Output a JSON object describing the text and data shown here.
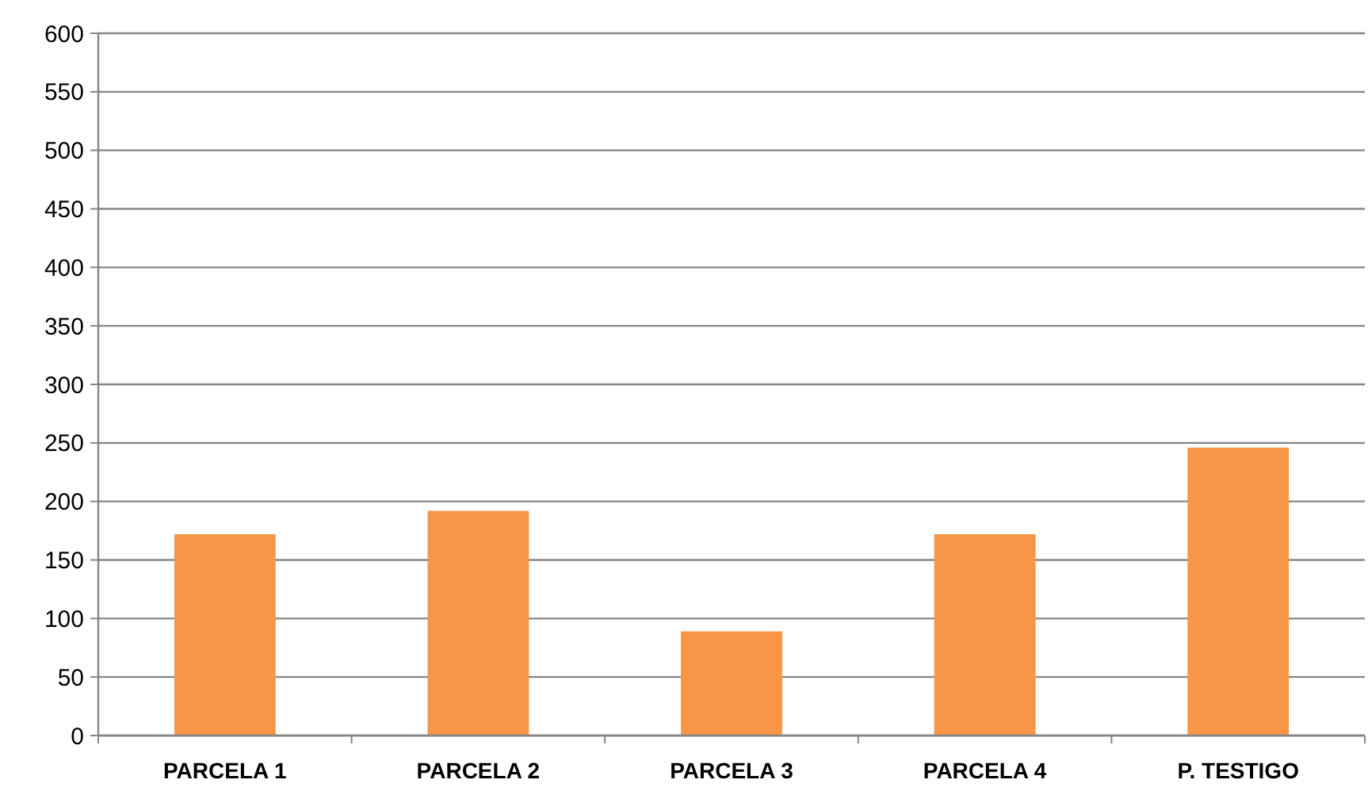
{
  "chart_data": {
    "type": "bar",
    "categories": [
      "PARCELA 1",
      "PARCELA 2",
      "PARCELA 3",
      "PARCELA 4",
      "P. TESTIGO"
    ],
    "values": [
      172,
      192,
      89,
      172,
      246
    ],
    "color": "#f79646",
    "ylim": [
      0,
      600
    ],
    "yticks": [
      0,
      50,
      100,
      150,
      200,
      250,
      300,
      350,
      400,
      450,
      500,
      550,
      600
    ],
    "grid": "y"
  }
}
